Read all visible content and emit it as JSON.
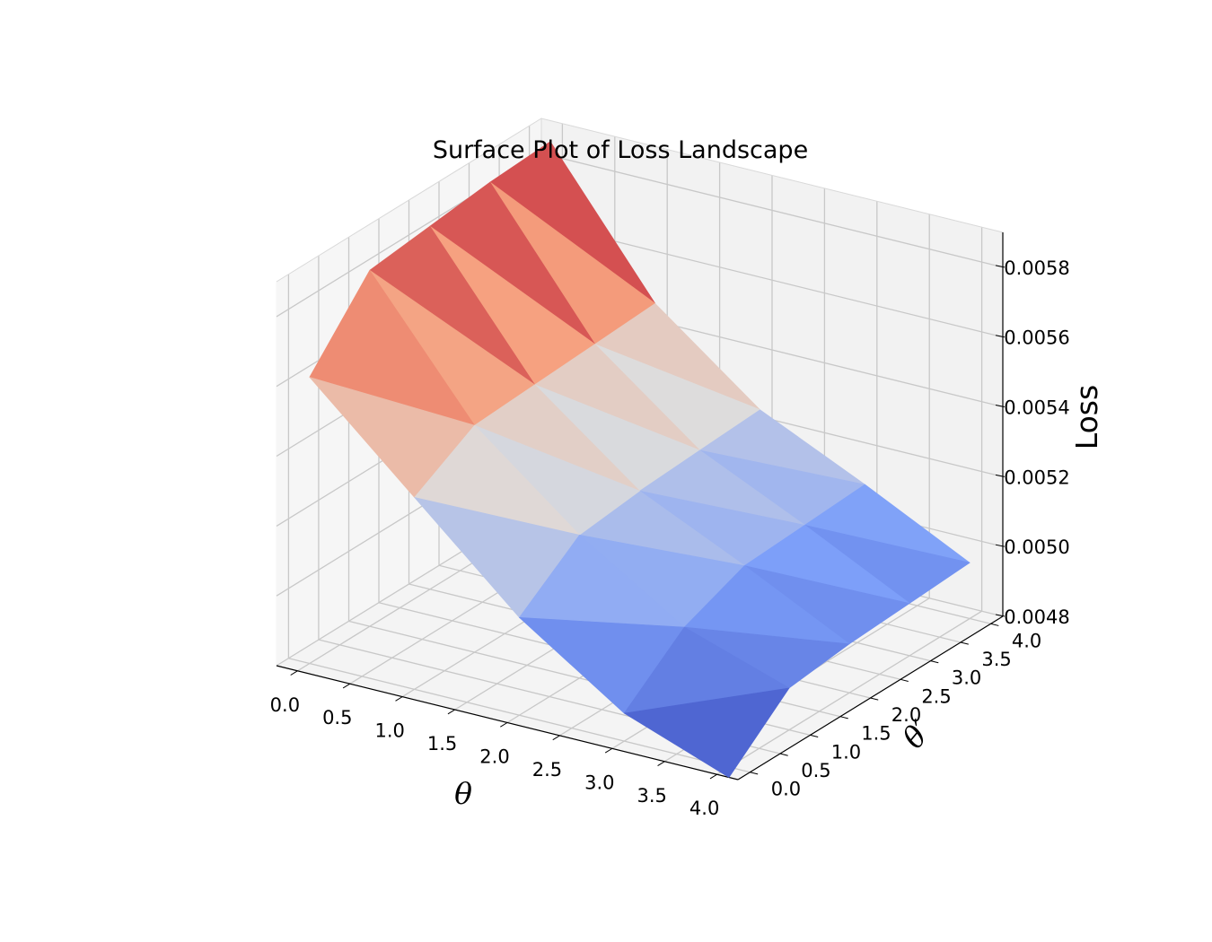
{
  "chart_data": {
    "type": "surface",
    "title": "Surface Plot of Loss Landscape",
    "xlabel": "θ",
    "ylabel": "θ′",
    "zlabel": "Loss",
    "xlim": [
      -0.2,
      4.2
    ],
    "ylim": [
      -0.2,
      4.2
    ],
    "zlim": [
      0.0048,
      0.0059
    ],
    "x_ticks": [
      "0.0",
      "0.5",
      "1.0",
      "1.5",
      "2.0",
      "2.5",
      "3.0",
      "3.5",
      "4.0"
    ],
    "y_ticks": [
      "0.0",
      "0.5",
      "1.0",
      "1.5",
      "2.0",
      "2.5",
      "3.0",
      "3.5",
      "4.0"
    ],
    "z_ticks": [
      "0.0048",
      "0.0050",
      "0.0052",
      "0.0054",
      "0.0056",
      "0.0058"
    ],
    "x": [
      0,
      1,
      2,
      3,
      4
    ],
    "y": [
      0,
      1,
      2,
      3,
      4
    ],
    "z": [
      [
        0.00562,
        0.00582,
        0.00584,
        0.00586,
        0.00587
      ],
      [
        0.00535,
        0.00545,
        0.00546,
        0.00547,
        0.00548
      ],
      [
        0.00508,
        0.00521,
        0.00523,
        0.00524,
        0.00525
      ],
      [
        0.00488,
        0.00502,
        0.00509,
        0.0051,
        0.00511
      ],
      [
        0.00477,
        0.00492,
        0.00494,
        0.00495,
        0.00496
      ]
    ],
    "colormap": "coolwarm",
    "grid": true
  }
}
